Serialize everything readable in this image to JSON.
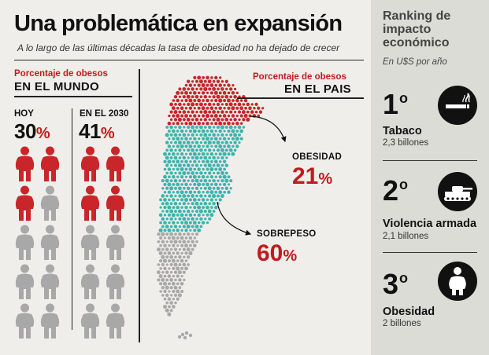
{
  "header": {
    "title": "Una problemática en expansión",
    "subtitle": "A lo largo de las últimas décadas la tasa de obesidad no ha dejado de crecer"
  },
  "mundo": {
    "label": "Porcentaje de obesos",
    "title": "EN EL MUNDO",
    "columns": [
      {
        "label": "HOY",
        "value": "30",
        "symbol": "%",
        "obese_count": 3,
        "total": 10
      },
      {
        "label": "EN EL 2030",
        "value": "41",
        "symbol": "%",
        "obese_count": 4,
        "total": 10
      }
    ]
  },
  "pais": {
    "label": "Porcentaje de obesos",
    "title": "EN EL PAIS",
    "obesidad": {
      "label": "OBESIDAD",
      "value": "21",
      "symbol": "%"
    },
    "sobrepeso": {
      "label": "SOBREPESO",
      "value": "60",
      "symbol": "%"
    }
  },
  "ranking": {
    "title": "Ranking de impacto económico",
    "subtitle": "En U$S por año",
    "items": [
      {
        "rank": "1",
        "ordinal": "o",
        "name": "Tabaco",
        "value": "2,3 billones",
        "icon": "cigarette-icon"
      },
      {
        "rank": "2",
        "ordinal": "o",
        "name": "Violencia armada",
        "value": "2,1 billones",
        "icon": "tank-icon"
      },
      {
        "rank": "3",
        "ordinal": "o",
        "name": "Obesidad",
        "value": "2 billones",
        "icon": "obese-person-icon"
      }
    ]
  },
  "colors": {
    "accent_red": "#c21a1e",
    "obesity_red": "#c8262a",
    "overweight_teal": "#3fb3ad",
    "normal_gray": "#a8a8a8",
    "background": "#efeeea",
    "sidebar": "#dcdcd6"
  }
}
